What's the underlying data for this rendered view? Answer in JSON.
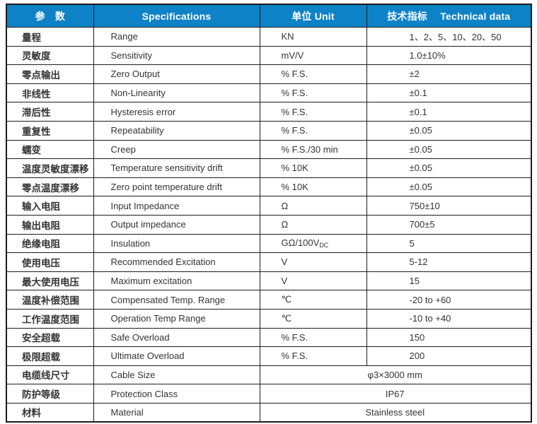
{
  "colors": {
    "header_bg": "#0d82c6",
    "header_text": "#ffffff",
    "border": "#1c1c1c",
    "body_text": "#333333",
    "page_bg": "#ffffff"
  },
  "table": {
    "headers": [
      "参　数",
      "Specifications",
      "单位 Unit",
      "技术指标　 Technical data"
    ],
    "rows": [
      {
        "zh": "量程",
        "en": "Range",
        "unit": "KN",
        "value": "1、2、5、10、20、50"
      },
      {
        "zh": "灵敏度",
        "en": "Sensitivity",
        "unit": "mV/V",
        "value": "1.0±10%"
      },
      {
        "zh": "零点输出",
        "en": "Zero Output",
        "unit": "% F.S.",
        "value": "±2"
      },
      {
        "zh": "非线性",
        "en": "Non-Linearity",
        "unit": "% F.S.",
        "value": "±0.1"
      },
      {
        "zh": "滞后性",
        "en": "Hysteresis error",
        "unit": "% F.S.",
        "value": "±0.1"
      },
      {
        "zh": "重复性",
        "en": "Repeatability",
        "unit": "% F.S.",
        "value": "±0.05"
      },
      {
        "zh": "蠕变",
        "en": "Creep",
        "unit": "% F.S./30 min",
        "value": "±0.05"
      },
      {
        "zh": "温度灵敏度漂移",
        "en": "Temperature sensitivity drift",
        "unit": "% 10K",
        "value": "±0.05"
      },
      {
        "zh": "零点温度漂移",
        "en": "Zero point temperature drift",
        "unit": "% 10K",
        "value": "±0.05"
      },
      {
        "zh": "输入电阻",
        "en": "Input Impedance",
        "unit": "Ω",
        "value": "750±10"
      },
      {
        "zh": "输出电阻",
        "en": "Output impedance",
        "unit": "Ω",
        "value": "700±5"
      },
      {
        "zh": "绝缘电阻",
        "en": "Insulation",
        "unit": "GΩ/100V",
        "unit_sub": "DC",
        "value": "5"
      },
      {
        "zh": "使用电压",
        "en": "Recommended Excitation",
        "unit": "V",
        "value": "5-12"
      },
      {
        "zh": "最大使用电压",
        "en": "Maximum excitation",
        "unit": "V",
        "value": "15"
      },
      {
        "zh": "温度补偿范围",
        "en": "Compensated Temp. Range",
        "unit": "℃",
        "value": "-20 to +60"
      },
      {
        "zh": "工作温度范围",
        "en": "Operation Temp Range",
        "unit": "℃",
        "value": "-10 to +40"
      },
      {
        "zh": "安全超载",
        "en": "Safe Overload",
        "unit": "% F.S.",
        "value": "150"
      },
      {
        "zh": "极限超载",
        "en": "Ultimate Overload",
        "unit": "% F.S.",
        "value": "200"
      },
      {
        "zh": "电缆线尺寸",
        "en": "Cable Size",
        "merged_value": "φ3×3000 mm"
      },
      {
        "zh": "防护等级",
        "en": "Protection Class",
        "merged_value": "IP67"
      },
      {
        "zh": "材料",
        "en": "Material",
        "merged_value": "Stainless steel"
      }
    ]
  }
}
